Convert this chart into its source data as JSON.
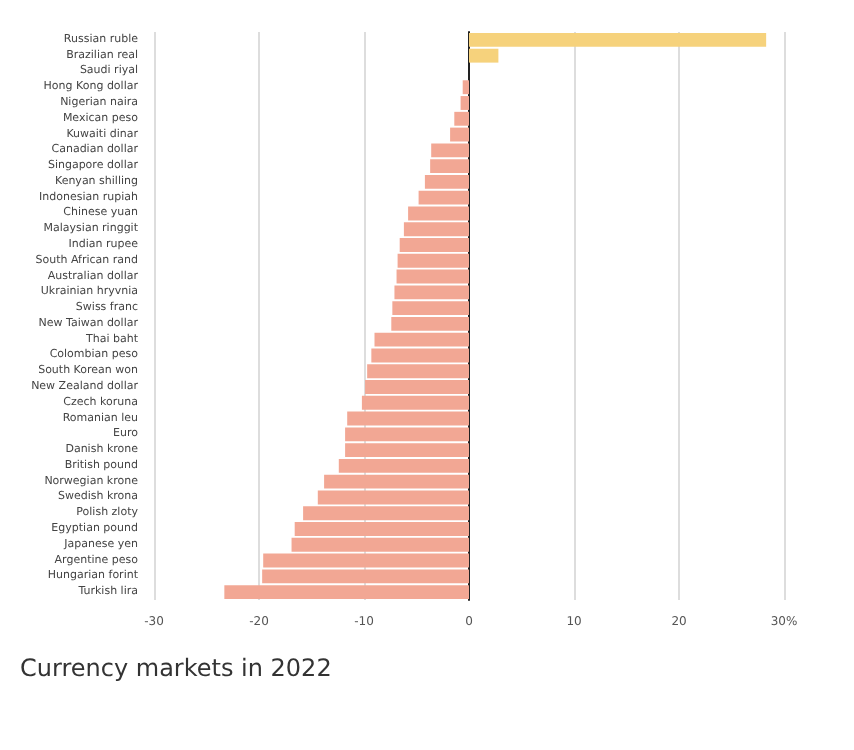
{
  "chart_data": {
    "type": "bar",
    "orientation": "horizontal",
    "categories": [
      "Russian ruble",
      "Brazilian real",
      "Saudi riyal",
      "Hong Kong dollar",
      "Nigerian naira",
      "Mexican peso",
      "Kuwaiti dinar",
      "Canadian dollar",
      "Singapore dollar",
      "Kenyan shilling",
      "Indonesian rupiah",
      "Chinese yuan",
      "Malaysian ringgit",
      "Indian rupee",
      "South African rand",
      "Australian dollar",
      "Ukrainian hryvnia",
      "Swiss franc",
      "New Taiwan dollar",
      "Thai baht",
      "Colombian peso",
      "South Korean won",
      "New Zealand dollar",
      "Czech koruna",
      "Romanian leu",
      "Euro",
      "Danish krone",
      "British pound",
      "Norwegian krone",
      "Swedish krona",
      "Polish zloty",
      "Egyptian pound",
      "Japanese yen",
      "Argentine peso",
      "Hungarian forint",
      "Turkish lira"
    ],
    "values": [
      28.3,
      2.8,
      0,
      -0.6,
      -0.8,
      -1.4,
      -1.8,
      -3.6,
      -3.7,
      -4.2,
      -4.8,
      -5.8,
      -6.2,
      -6.6,
      -6.8,
      -6.9,
      -7.1,
      -7.3,
      -7.4,
      -9.0,
      -9.3,
      -9.7,
      -9.9,
      -10.2,
      -11.6,
      -11.8,
      -11.8,
      -12.4,
      -13.8,
      -14.4,
      -15.8,
      -16.6,
      -16.9,
      -19.6,
      -19.7,
      -23.3
    ],
    "colors": [
      "#f6d27c",
      "#f6d27c",
      "#f2a794",
      "#f2a794",
      "#f2a794",
      "#f2a794",
      "#f2a794",
      "#f2a794",
      "#f2a794",
      "#f2a794",
      "#f2a794",
      "#f2a794",
      "#f2a794",
      "#f2a794",
      "#f2a794",
      "#f2a794",
      "#f2a794",
      "#f2a794",
      "#f2a794",
      "#f2a794",
      "#f2a794",
      "#f2a794",
      "#f2a794",
      "#f2a794",
      "#f2a794",
      "#f2a794",
      "#f2a794",
      "#f2a794",
      "#f2a794",
      "#f2a794",
      "#f2a794",
      "#f2a794",
      "#f2a794",
      "#f2a794",
      "#f2a794",
      "#f2a794"
    ],
    "xlim": [
      -30,
      30
    ],
    "xticks": [
      -30,
      -20,
      -10,
      0,
      10,
      20,
      {
        "value": 30,
        "label": "30%"
      }
    ],
    "grid": "x",
    "annotations": [
      "Currency markets in 2022"
    ]
  }
}
